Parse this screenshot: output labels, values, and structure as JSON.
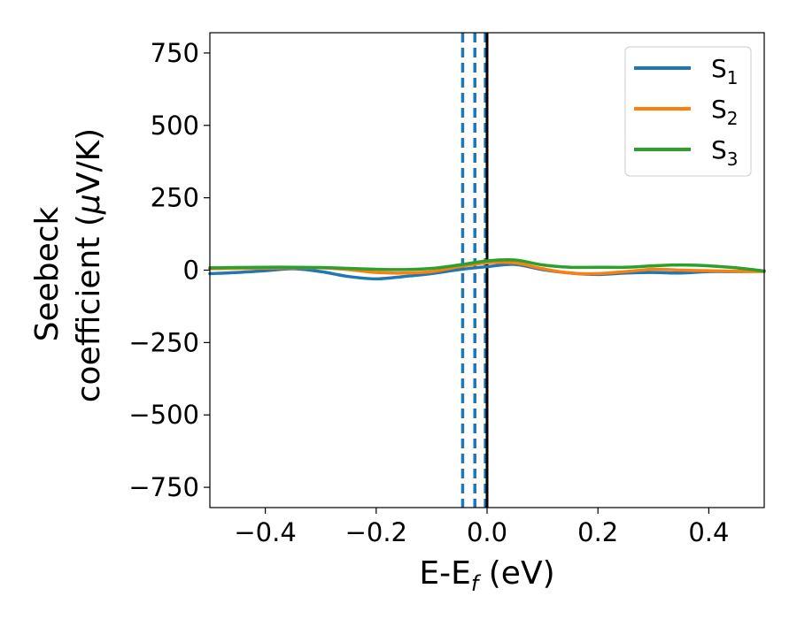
{
  "chart_data": {
    "type": "line",
    "title": "",
    "xlabel": {
      "main": "E-E",
      "sub": "f",
      "unit": " (eV)"
    },
    "ylabel": {
      "line1": "Seebeck",
      "line2_pre": "coefficient  (",
      "mu": "μ",
      "line2_post": "V/K)"
    },
    "xlim": [
      -0.5,
      0.5
    ],
    "ylim": [
      -820,
      820
    ],
    "xticks": [
      -0.4,
      -0.2,
      0.0,
      0.2,
      0.4
    ],
    "xtick_labels": [
      "−0.4",
      "−0.2",
      "0.0",
      "0.2",
      "0.4"
    ],
    "yticks": [
      750,
      500,
      250,
      0,
      -250,
      -500,
      -750
    ],
    "ytick_labels": [
      "750",
      "500",
      "250",
      "0",
      "−250",
      "−500",
      "−750"
    ],
    "grid": false,
    "legend_position": "top-right",
    "vertical_lines": [
      {
        "x": -0.044,
        "style": "dashed",
        "color": "#1f77b4"
      },
      {
        "x": -0.022,
        "style": "dashed",
        "color": "#1f77b4"
      },
      {
        "x": -0.003,
        "style": "dashed",
        "color": "#1f77b4"
      },
      {
        "x": 0.0,
        "style": "solid",
        "color": "#000000"
      }
    ],
    "series": [
      {
        "name": "S",
        "sub": "1",
        "color": "#1f77b4",
        "x": [
          -0.5,
          -0.45,
          -0.4,
          -0.35,
          -0.3,
          -0.25,
          -0.2,
          -0.15,
          -0.1,
          -0.05,
          0.0,
          0.05,
          0.1,
          0.15,
          0.2,
          0.25,
          0.3,
          0.35,
          0.4,
          0.45,
          0.5
        ],
        "y": [
          -12,
          -8,
          -2,
          5,
          -5,
          -22,
          -30,
          -22,
          -12,
          2,
          12,
          20,
          2,
          -10,
          -15,
          -10,
          -8,
          -10,
          -5,
          -5,
          -3
        ]
      },
      {
        "name": "S",
        "sub": "2",
        "color": "#ff7f0e",
        "x": [
          -0.5,
          -0.45,
          -0.4,
          -0.35,
          -0.3,
          -0.25,
          -0.2,
          -0.15,
          -0.1,
          -0.05,
          0.0,
          0.05,
          0.1,
          0.15,
          0.2,
          0.25,
          0.3,
          0.35,
          0.4,
          0.45,
          0.5
        ],
        "y": [
          5,
          6,
          7,
          8,
          8,
          2,
          -8,
          -10,
          -5,
          12,
          25,
          25,
          5,
          -10,
          -12,
          -5,
          3,
          0,
          -2,
          -4,
          -5
        ]
      },
      {
        "name": "S",
        "sub": "3",
        "color": "#2ca02c",
        "x": [
          -0.5,
          -0.45,
          -0.4,
          -0.35,
          -0.3,
          -0.25,
          -0.2,
          -0.15,
          -0.1,
          -0.05,
          0.0,
          0.05,
          0.1,
          0.15,
          0.2,
          0.25,
          0.3,
          0.35,
          0.4,
          0.45,
          0.5
        ],
        "y": [
          8,
          9,
          10,
          10,
          9,
          6,
          3,
          2,
          6,
          18,
          32,
          35,
          18,
          10,
          10,
          10,
          15,
          18,
          15,
          8,
          -3
        ]
      }
    ]
  }
}
